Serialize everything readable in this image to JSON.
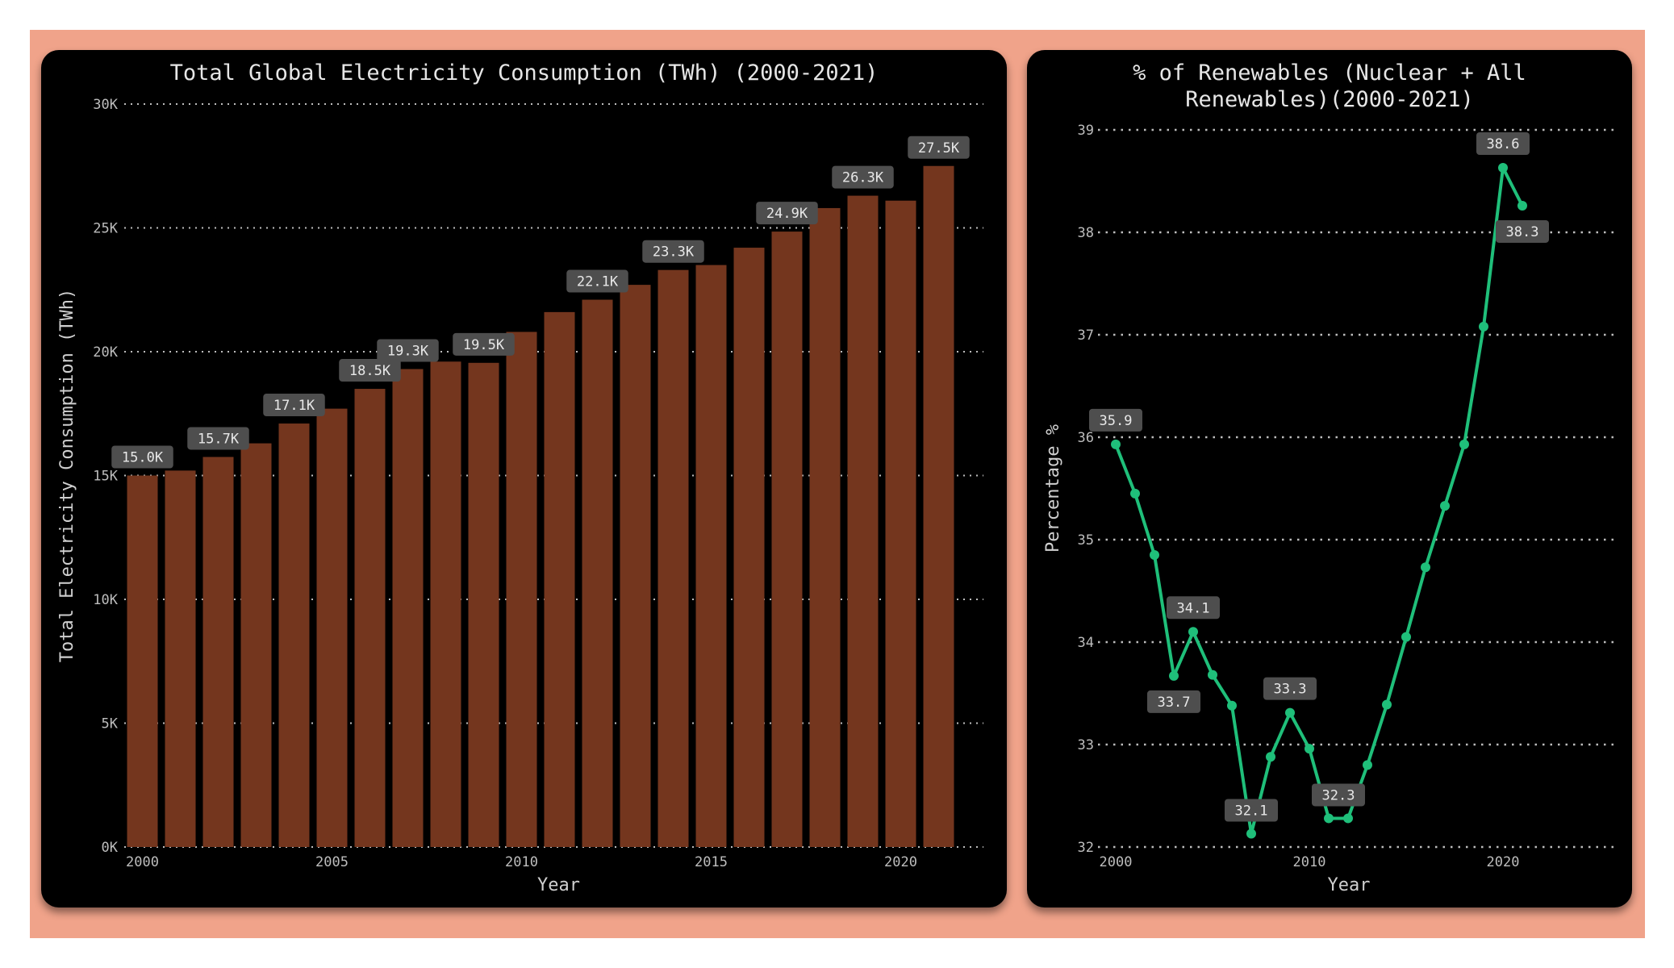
{
  "chart_data": [
    {
      "type": "bar",
      "title": "Total Global Electricity Consumption (TWh) (2000-2021)",
      "xlabel": "Year",
      "ylabel": "Total Electricity Consumption (TWh)",
      "ylim": [
        0,
        30000
      ],
      "y_ticks": [
        "0K",
        "5K",
        "10K",
        "15K",
        "20K",
        "25K",
        "30K"
      ],
      "x_ticks": [
        "2000",
        "2005",
        "2010",
        "2015",
        "2020"
      ],
      "grid": true,
      "colors": {
        "bar": "#74361e",
        "label_bg": "#4e4e4e",
        "label_text": "#e8e8e8",
        "grid": "#bdbdbd"
      },
      "categories": [
        2000,
        2001,
        2002,
        2003,
        2004,
        2005,
        2006,
        2007,
        2008,
        2009,
        2010,
        2011,
        2012,
        2013,
        2014,
        2015,
        2016,
        2017,
        2018,
        2019,
        2020,
        2021
      ],
      "values": [
        15000,
        15200,
        15750,
        16300,
        17100,
        17700,
        18500,
        19300,
        19600,
        19550,
        20800,
        21600,
        22100,
        22700,
        23300,
        23500,
        24200,
        24850,
        25800,
        26300,
        26100,
        27500
      ],
      "data_labels": [
        {
          "year": 2000,
          "text": "15.0K"
        },
        {
          "year": 2002,
          "text": "15.7K"
        },
        {
          "year": 2004,
          "text": "17.1K"
        },
        {
          "year": 2006,
          "text": "18.5K"
        },
        {
          "year": 2007,
          "text": "19.3K"
        },
        {
          "year": 2009,
          "text": "19.5K"
        },
        {
          "year": 2012,
          "text": "22.1K"
        },
        {
          "year": 2014,
          "text": "23.3K"
        },
        {
          "year": 2017,
          "text": "24.9K"
        },
        {
          "year": 2019,
          "text": "26.3K"
        },
        {
          "year": 2021,
          "text": "27.5K"
        }
      ]
    },
    {
      "type": "line",
      "title": "% of Renewables (Nuclear + All Renewables)(2000-2021)",
      "xlabel": "Year",
      "ylabel": "Percentage %",
      "ylim": [
        32,
        39
      ],
      "xlim": [
        2000,
        2021
      ],
      "y_ticks": [
        "32",
        "33",
        "34",
        "35",
        "36",
        "37",
        "38",
        "39"
      ],
      "x_ticks": [
        "2000",
        "2010",
        "2020"
      ],
      "grid": true,
      "colors": {
        "line": "#1fbf7a",
        "label_bg": "#4e4e4e",
        "label_text": "#e8e8e8",
        "grid": "#bdbdbd"
      },
      "x": [
        2000,
        2001,
        2002,
        2003,
        2004,
        2005,
        2006,
        2007,
        2008,
        2009,
        2010,
        2011,
        2012,
        2013,
        2014,
        2015,
        2016,
        2017,
        2018,
        2019,
        2020,
        2021
      ],
      "y": [
        35.93,
        35.45,
        34.85,
        33.67,
        34.1,
        33.68,
        33.38,
        32.13,
        32.88,
        33.31,
        32.96,
        32.28,
        32.28,
        32.8,
        33.39,
        34.05,
        34.73,
        35.33,
        35.93,
        37.08,
        38.63,
        38.26
      ],
      "data_labels": [
        {
          "year": 2000,
          "text": "35.9",
          "pos": "above"
        },
        {
          "year": 2003,
          "text": "33.7",
          "pos": "below"
        },
        {
          "year": 2004,
          "text": "34.1",
          "pos": "above"
        },
        {
          "year": 2007,
          "text": "32.1",
          "pos": "on"
        },
        {
          "year": 2009,
          "text": "33.3",
          "pos": "above"
        },
        {
          "year": 2011.5,
          "text": "32.3",
          "pos": "on"
        },
        {
          "year": 2020,
          "text": "38.6",
          "pos": "above"
        },
        {
          "year": 2021,
          "text": "38.3",
          "pos": "below"
        }
      ]
    }
  ]
}
